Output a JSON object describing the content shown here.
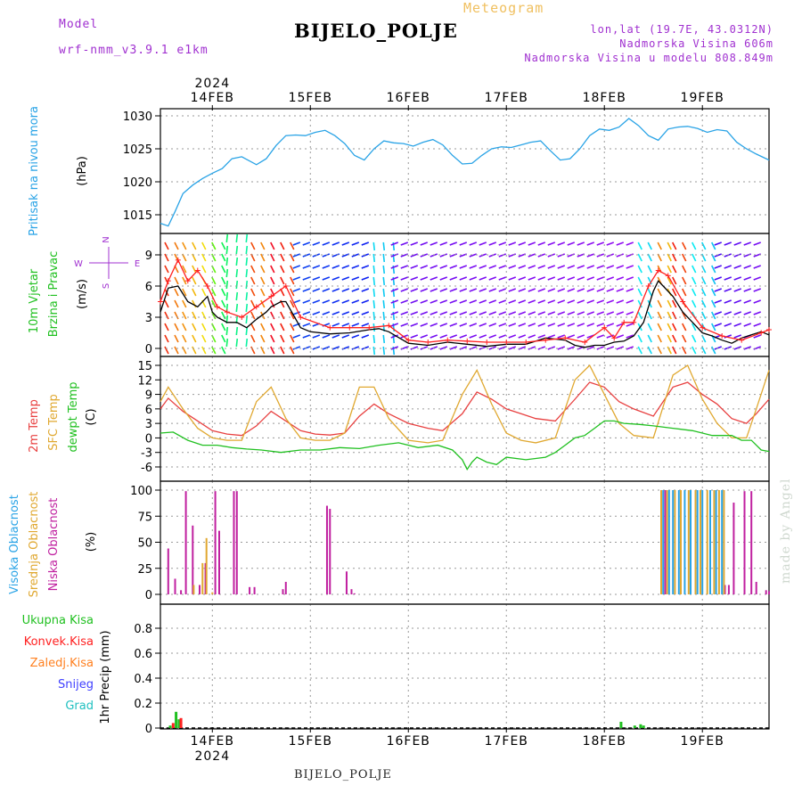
{
  "header": {
    "model_label": "Model",
    "model_name": "wrf-nmm_v3.9.1 e1km",
    "station": "BIJELO_POLJE",
    "meteogram": "Meteogram",
    "lonlat": "lon,lat (19.7E, 43.0312N)",
    "altitude": "Nadmorska Visina 606m",
    "model_altitude": "Nadmorska Visina u modelu 808.849m"
  },
  "footer": {
    "station": "BIJELO_POLJE",
    "made_by": "made by Angel"
  },
  "time_axis": {
    "day_labels": [
      "14FEB",
      "15FEB",
      "16FEB",
      "17FEB",
      "18FEB",
      "19FEB"
    ],
    "day_positions": [
      1,
      2,
      3,
      4,
      5,
      6
    ],
    "year": "2024",
    "range": [
      0.47,
      6.68
    ]
  },
  "colors": {
    "pressure": "#29a3e6",
    "wind_speed": "#000000",
    "gust": "#ff2020",
    "temp2m": "#e84040",
    "temp_sfc": "#e0a830",
    "dewpoint": "#20c020",
    "cloud_high": "#29a3e6",
    "cloud_mid": "#e0a830",
    "cloud_low": "#c020a0",
    "precip_total": "#20c020",
    "precip_conv": "#ff2020",
    "precip_frz": "#ff8020",
    "precip_snow": "#4040ff",
    "precip_grad": "#20c0c0"
  },
  "chart_data": [
    {
      "type": "line",
      "id": "pressure",
      "ylabel_lines": [
        "Pritisak na nivou mora",
        "(hPa)"
      ],
      "yticks": [
        1015,
        1020,
        1025,
        1030
      ],
      "ylim": [
        1012.5,
        1030.5
      ],
      "grid": true,
      "series": [
        {
          "key": "pressure",
          "x": [
            0.47,
            0.55,
            0.62,
            0.7,
            0.8,
            0.9,
            1.0,
            1.1,
            1.2,
            1.3,
            1.45,
            1.55,
            1.65,
            1.75,
            1.85,
            1.95,
            2.05,
            2.15,
            2.25,
            2.35,
            2.45,
            2.55,
            2.65,
            2.75,
            2.85,
            2.95,
            3.05,
            3.15,
            3.25,
            3.35,
            3.45,
            3.55,
            3.65,
            3.75,
            3.85,
            3.95,
            4.05,
            4.15,
            4.25,
            4.35,
            4.45,
            4.55,
            4.65,
            4.75,
            4.85,
            4.95,
            5.05,
            5.15,
            5.25,
            5.35,
            5.45,
            5.55,
            5.65,
            5.75,
            5.85,
            5.95,
            6.05,
            6.15,
            6.25,
            6.35,
            6.45,
            6.55,
            6.68
          ],
          "y": [
            1013.7,
            1013.3,
            1015.5,
            1018.2,
            1019.5,
            1020.5,
            1021.3,
            1022.0,
            1023.5,
            1023.8,
            1022.6,
            1023.5,
            1025.5,
            1027.0,
            1027.1,
            1027.0,
            1027.5,
            1027.8,
            1027.0,
            1025.8,
            1024.0,
            1023.3,
            1025.0,
            1026.2,
            1025.9,
            1025.8,
            1025.4,
            1026.0,
            1026.4,
            1025.6,
            1024.0,
            1022.7,
            1022.8,
            1024.0,
            1025.0,
            1025.3,
            1025.2,
            1025.6,
            1026.0,
            1026.2,
            1024.7,
            1023.3,
            1023.5,
            1025.0,
            1027.0,
            1028.0,
            1027.8,
            1028.3,
            1029.6,
            1028.5,
            1027.0,
            1026.3,
            1028.0,
            1028.3,
            1028.4,
            1028.1,
            1027.5,
            1027.9,
            1027.7,
            1026.0,
            1025.0,
            1024.2,
            1023.3
          ]
        }
      ]
    },
    {
      "type": "line",
      "id": "wind",
      "ylabel_lines": [
        "10m Vjetar",
        "Brzina i Pravac",
        "(m/s)"
      ],
      "compass": [
        "N",
        "E",
        "W",
        "S"
      ],
      "yticks": [
        0,
        3,
        6,
        9
      ],
      "ylim": [
        -0.5,
        11.3
      ],
      "grid": true,
      "series": [
        {
          "key": "wind_speed",
          "x": [
            0.47,
            0.55,
            0.65,
            0.75,
            0.85,
            0.95,
            1.0,
            1.05,
            1.15,
            1.25,
            1.35,
            1.45,
            1.55,
            1.6,
            1.7,
            1.75,
            1.9,
            2.0,
            2.2,
            2.4,
            2.6,
            2.7,
            2.8,
            3.0,
            3.2,
            3.4,
            3.6,
            3.8,
            4.0,
            4.2,
            4.4,
            4.6,
            4.7,
            4.8,
            4.9,
            5.0,
            5.1,
            5.2,
            5.3,
            5.4,
            5.45,
            5.5,
            5.55,
            5.6,
            5.7,
            5.8,
            5.9,
            6.0,
            6.1,
            6.2,
            6.3,
            6.4,
            6.5,
            6.6,
            6.68
          ],
          "y": [
            3.5,
            5.8,
            6.0,
            4.5,
            4.0,
            5.0,
            3.5,
            3.0,
            2.5,
            2.5,
            2.0,
            2.8,
            3.5,
            4.0,
            4.5,
            4.5,
            2.0,
            1.6,
            1.4,
            1.5,
            1.8,
            1.9,
            1.6,
            0.5,
            0.3,
            0.6,
            0.4,
            0.2,
            0.4,
            0.4,
            1.0,
            0.8,
            0.3,
            0.1,
            0.3,
            0.3,
            0.6,
            0.7,
            1.2,
            2.5,
            4.0,
            5.5,
            6.5,
            6.0,
            5.0,
            3.5,
            2.5,
            1.5,
            1.2,
            0.8,
            0.5,
            1.0,
            1.3,
            1.6,
            1.3
          ]
        },
        {
          "key": "gust",
          "x": [
            0.47,
            0.55,
            0.65,
            0.75,
            0.85,
            0.95,
            1.05,
            1.15,
            1.3,
            1.45,
            1.6,
            1.75,
            1.9,
            2.2,
            2.4,
            2.6,
            2.8,
            3.0,
            3.2,
            3.4,
            3.6,
            3.8,
            4.0,
            4.2,
            4.4,
            4.6,
            4.8,
            5.0,
            5.1,
            5.2,
            5.3,
            5.45,
            5.55,
            5.65,
            5.8,
            6.0,
            6.2,
            6.4,
            6.6,
            6.68
          ],
          "y": [
            4.5,
            6.5,
            8.5,
            6.5,
            7.5,
            6.0,
            4.0,
            3.5,
            3.0,
            4.0,
            5.0,
            6.0,
            3.0,
            2.0,
            2.0,
            2.0,
            2.2,
            0.8,
            0.6,
            0.8,
            0.7,
            0.6,
            0.6,
            0.6,
            0.8,
            1.0,
            0.6,
            2.0,
            1.0,
            2.5,
            2.5,
            6.0,
            7.5,
            7.0,
            4.5,
            2.0,
            1.2,
            0.8,
            1.5,
            1.8
          ]
        }
      ]
    },
    {
      "type": "line",
      "id": "temperature",
      "ylabel_lines": [
        "2m Temp",
        "SFC Temp",
        "dewpt Temp",
        "(C)"
      ],
      "yticks": [
        -6,
        -3,
        0,
        3,
        6,
        9,
        12,
        15
      ],
      "ylim": [
        -8,
        16.5
      ],
      "grid": true,
      "series": [
        {
          "key": "temp2m",
          "x": [
            0.47,
            0.55,
            0.7,
            0.85,
            1.0,
            1.15,
            1.3,
            1.45,
            1.6,
            1.75,
            1.9,
            2.05,
            2.2,
            2.35,
            2.5,
            2.65,
            2.8,
            3.0,
            3.2,
            3.35,
            3.55,
            3.7,
            3.85,
            4.0,
            4.15,
            4.3,
            4.5,
            4.7,
            4.85,
            5.0,
            5.15,
            5.3,
            5.5,
            5.7,
            5.85,
            6.0,
            6.15,
            6.3,
            6.45,
            6.55,
            6.68
          ],
          "y": [
            6,
            8.2,
            5.5,
            3.5,
            1.5,
            0.8,
            0.5,
            2.5,
            5.5,
            3.5,
            1.5,
            0.8,
            0.6,
            1.0,
            4.5,
            7.0,
            5.0,
            3.0,
            2.0,
            1.5,
            5.0,
            9.5,
            8.0,
            6.0,
            5.0,
            4.0,
            3.5,
            8.0,
            11.5,
            10.5,
            7.5,
            6.0,
            4.5,
            10.5,
            11.5,
            9.0,
            7.0,
            4.0,
            3.0,
            5.0,
            8.0
          ]
        },
        {
          "key": "temp_sfc",
          "x": [
            0.47,
            0.55,
            0.7,
            0.85,
            1.0,
            1.15,
            1.3,
            1.45,
            1.6,
            1.75,
            1.9,
            2.05,
            2.2,
            2.35,
            2.5,
            2.65,
            2.8,
            3.0,
            3.2,
            3.35,
            3.55,
            3.7,
            3.85,
            4.0,
            4.15,
            4.3,
            4.5,
            4.7,
            4.85,
            5.0,
            5.15,
            5.3,
            5.5,
            5.7,
            5.85,
            6.0,
            6.15,
            6.3,
            6.45,
            6.55,
            6.68
          ],
          "y": [
            7.5,
            10.5,
            6.0,
            2.0,
            0.0,
            -0.5,
            -0.5,
            7.5,
            10.5,
            4.0,
            0.0,
            -0.5,
            -0.5,
            1.0,
            10.5,
            10.5,
            4.0,
            -0.5,
            -1.0,
            -0.5,
            9.0,
            14.0,
            7.0,
            1.0,
            -0.5,
            -1.0,
            0.0,
            12.0,
            15.0,
            9.0,
            3.0,
            0.5,
            0.0,
            13.0,
            15.0,
            8.0,
            3.0,
            0.0,
            0.0,
            6.0,
            14.0
          ]
        },
        {
          "key": "dewpoint",
          "x": [
            0.47,
            0.6,
            0.75,
            0.9,
            1.05,
            1.2,
            1.35,
            1.5,
            1.7,
            1.9,
            2.1,
            2.3,
            2.5,
            2.7,
            2.9,
            3.1,
            3.3,
            3.45,
            3.55,
            3.6,
            3.65,
            3.7,
            3.8,
            3.9,
            4.0,
            4.2,
            4.4,
            4.5,
            4.6,
            4.7,
            4.8,
            4.9,
            5.0,
            5.1,
            5.2,
            5.35,
            5.5,
            5.7,
            5.9,
            6.1,
            6.3,
            6.4,
            6.5,
            6.6,
            6.68
          ],
          "y": [
            1,
            1.2,
            -0.5,
            -1.5,
            -1.5,
            -2.0,
            -2.3,
            -2.5,
            -3.0,
            -2.5,
            -2.5,
            -2.0,
            -2.2,
            -1.5,
            -1.0,
            -2.0,
            -1.5,
            -2.5,
            -4.5,
            -6.5,
            -5.0,
            -4.0,
            -5.0,
            -5.5,
            -4.0,
            -4.5,
            -4.0,
            -3.0,
            -1.5,
            0.0,
            0.5,
            2.0,
            3.5,
            3.5,
            3.0,
            2.8,
            2.5,
            2.0,
            1.5,
            0.5,
            0.5,
            -0.5,
            -0.5,
            -2.5,
            -2.8
          ]
        }
      ]
    },
    {
      "type": "bar",
      "id": "clouds",
      "ylabel_lines": [
        "Visoka Oblacnost",
        "Srednja Oblacnost",
        "Niska Oblacnost",
        "(%)"
      ],
      "yticks": [
        0,
        25,
        50,
        75,
        100
      ],
      "ylim": [
        0,
        101
      ],
      "grid": true,
      "series": [
        {
          "key": "cloud_low",
          "x": [
            0.55,
            0.62,
            0.68,
            0.73,
            0.8,
            0.87,
            0.93,
            1.03,
            1.07,
            1.22,
            1.25,
            1.38,
            1.43,
            1.72,
            1.75,
            2.17,
            2.2,
            2.37,
            2.42,
            2.45,
            5.58,
            5.62,
            6.23,
            6.27,
            6.32,
            6.43,
            6.5,
            6.55,
            6.65,
            6.68
          ],
          "y": [
            44,
            15,
            4,
            99,
            66,
            9,
            30,
            99,
            61,
            99,
            99,
            7,
            7,
            5,
            12,
            85,
            82,
            22,
            5,
            1,
            100,
            100,
            9,
            9,
            88,
            99,
            99,
            12,
            4,
            3
          ]
        },
        {
          "key": "cloud_mid",
          "x": [
            0.81,
            0.9,
            0.94,
            1.0,
            5.58,
            5.64,
            5.72,
            5.78,
            5.86,
            5.93,
            5.98,
            6.05,
            6.12,
            6.17,
            6.22
          ],
          "y": [
            9,
            30,
            54,
            2,
            100,
            100,
            100,
            100,
            100,
            100,
            100,
            100,
            100,
            100,
            100
          ]
        },
        {
          "key": "cloud_high",
          "x": [
            5.6,
            5.66,
            5.7,
            5.76,
            5.82,
            5.88,
            5.95,
            6.0,
            6.08,
            6.14,
            6.2
          ],
          "y": [
            100,
            100,
            100,
            100,
            100,
            100,
            100,
            100,
            100,
            100,
            100
          ]
        }
      ]
    },
    {
      "type": "bar",
      "id": "precip",
      "ylabel_lines": [
        "1hr Precip (mm)"
      ],
      "legend": [
        "Ukupna Kisa",
        "Konvek.Kisa",
        "Zaledj.Kisa",
        "Snijeg",
        "Grad"
      ],
      "yticks": [
        0,
        0.2,
        0.4,
        0.6,
        0.8
      ],
      "ylim": [
        0,
        0.95
      ],
      "grid": true,
      "series": [
        {
          "key": "precip_total",
          "x": [
            0.57,
            0.63,
            0.66,
            5.17,
            5.31,
            5.37,
            5.4
          ],
          "y": [
            0.02,
            0.13,
            0.07,
            0.05,
            0.02,
            0.03,
            0.02
          ]
        },
        {
          "key": "precip_conv",
          "x": [
            0.6,
            0.68
          ],
          "y": [
            0.04,
            0.08
          ]
        }
      ]
    }
  ]
}
